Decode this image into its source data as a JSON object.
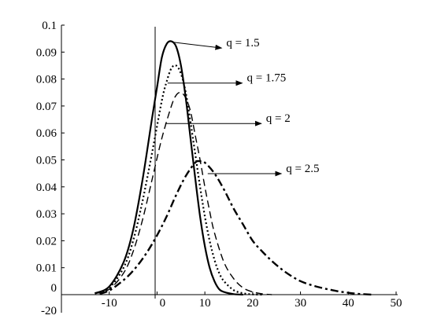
{
  "chart_data": {
    "type": "line",
    "title": "",
    "xlabel": "",
    "ylabel": "",
    "xlim": [
      -20,
      50
    ],
    "ylim": [
      0,
      0.1
    ],
    "grid": false,
    "x_ticks": [
      {
        "value": -10,
        "label": "-10"
      },
      {
        "value": 0,
        "label": "0"
      },
      {
        "value": 10,
        "label": "10"
      },
      {
        "value": 20,
        "label": "20"
      },
      {
        "value": 30,
        "label": "30"
      },
      {
        "value": 40,
        "label": "40"
      },
      {
        "value": 50,
        "label": "50"
      }
    ],
    "x_origin_label": "-20",
    "y_ticks": [
      {
        "value": 0,
        "label": "0"
      },
      {
        "value": 0.01,
        "label": "0.01"
      },
      {
        "value": 0.02,
        "label": "0.02"
      },
      {
        "value": 0.03,
        "label": "0.03"
      },
      {
        "value": 0.04,
        "label": "0.04"
      },
      {
        "value": 0.05,
        "label": "0.05"
      },
      {
        "value": 0.06,
        "label": "0.06"
      },
      {
        "value": 0.07,
        "label": "0.07"
      },
      {
        "value": 0.08,
        "label": "0.08"
      },
      {
        "value": 0.09,
        "label": "0.09"
      },
      {
        "value": 0.1,
        "label": "0.1"
      }
    ],
    "series": [
      {
        "label": "q = 1.5",
        "style": "solid",
        "x": [
          -13,
          -10,
          -7,
          -5,
          -3,
          -1,
          0,
          1,
          2,
          3,
          4,
          5,
          6,
          7,
          8,
          9,
          10,
          11,
          12,
          13,
          14,
          16,
          18
        ],
        "y": [
          0.0005,
          0.003,
          0.012,
          0.024,
          0.043,
          0.066,
          0.077,
          0.088,
          0.093,
          0.094,
          0.092,
          0.085,
          0.073,
          0.058,
          0.043,
          0.029,
          0.018,
          0.01,
          0.005,
          0.002,
          0.001,
          0.0002,
          0
        ]
      },
      {
        "label": "q = 1.75",
        "style": "dotted",
        "x": [
          -13,
          -10,
          -7,
          -5,
          -3,
          -1,
          1,
          2,
          3,
          4,
          5,
          6,
          7,
          8,
          9,
          10,
          11,
          12,
          13,
          14,
          16,
          18,
          20,
          22
        ],
        "y": [
          0.0004,
          0.0025,
          0.01,
          0.02,
          0.035,
          0.053,
          0.072,
          0.079,
          0.084,
          0.085,
          0.082,
          0.075,
          0.064,
          0.052,
          0.04,
          0.029,
          0.02,
          0.013,
          0.008,
          0.005,
          0.0017,
          0.0005,
          0.0001,
          0
        ]
      },
      {
        "label": "q = 2",
        "style": "dashed",
        "x": [
          -13,
          -10,
          -7,
          -5,
          -3,
          -1,
          1,
          3,
          4,
          5,
          6,
          7,
          8,
          9,
          10,
          11,
          12,
          14,
          16,
          18,
          20,
          22,
          24
        ],
        "y": [
          0.0004,
          0.002,
          0.008,
          0.016,
          0.028,
          0.043,
          0.058,
          0.07,
          0.074,
          0.075,
          0.073,
          0.068,
          0.059,
          0.05,
          0.04,
          0.031,
          0.023,
          0.012,
          0.006,
          0.0025,
          0.001,
          0.0003,
          0
        ]
      },
      {
        "label": "q = 2.5",
        "style": "dashdot",
        "x": [
          -12,
          -10,
          -8,
          -6,
          -4,
          -2,
          0,
          2,
          4,
          6,
          8,
          9,
          10,
          12,
          14,
          16,
          18,
          20,
          22,
          24,
          26,
          28,
          30,
          32,
          34,
          36,
          38,
          40,
          42,
          45
        ],
        "y": [
          0.0003,
          0.0015,
          0.004,
          0.007,
          0.011,
          0.016,
          0.022,
          0.029,
          0.037,
          0.044,
          0.049,
          0.0495,
          0.049,
          0.045,
          0.039,
          0.032,
          0.026,
          0.02,
          0.016,
          0.0125,
          0.0095,
          0.007,
          0.005,
          0.0037,
          0.0027,
          0.0019,
          0.0012,
          0.0007,
          0.0003,
          0
        ]
      }
    ],
    "annotations": [
      {
        "text": "q = 1.5",
        "from": [
          3.2,
          0.0937
        ],
        "to": [
          13.5,
          0.0915
        ]
      },
      {
        "text": "q = 1.75",
        "from": [
          2.2,
          0.0785
        ],
        "to": [
          17.8,
          0.0785
        ]
      },
      {
        "text": "q = 2",
        "from": [
          1.7,
          0.0635
        ],
        "to": [
          21.8,
          0.0635
        ]
      },
      {
        "text": "q = 2.5",
        "from": [
          10.6,
          0.0449
        ],
        "to": [
          26,
          0.0449
        ]
      }
    ]
  }
}
